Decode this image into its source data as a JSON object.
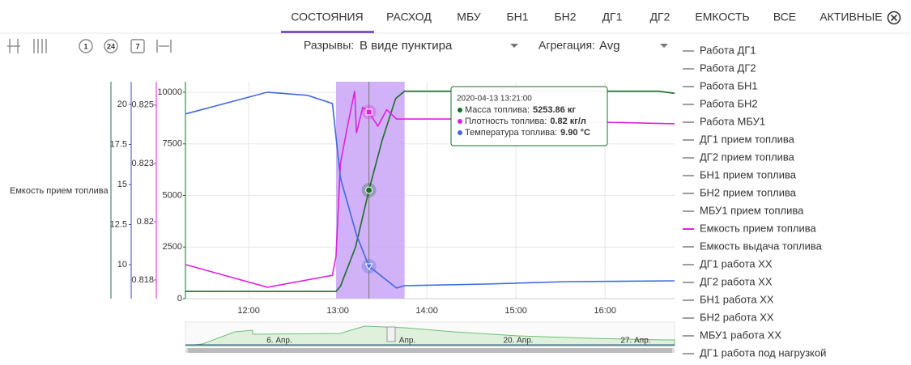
{
  "tabs": [
    "СОСТОЯНИЯ",
    "РАСХОД",
    "МБУ",
    "БН1",
    "БН2",
    "ДГ1",
    "ДГ2",
    "ЕМКОСТЬ",
    "ВСЕ",
    "АКТИВНЫЕ"
  ],
  "selected_tab": 0,
  "toolbar": {
    "icon_labels": [
      "1",
      "24",
      "7"
    ]
  },
  "controls": {
    "gaps_label": "Разрывы:",
    "gaps_value": "В виде пунктира",
    "aggregation_label": "Агрегация:",
    "aggregation_value": "Avg"
  },
  "legend_items": [
    {
      "label": "Работа ДГ1",
      "color": "#9e9e9e"
    },
    {
      "label": "Работа ДГ2",
      "color": "#9e9e9e"
    },
    {
      "label": "Работа БН1",
      "color": "#9e9e9e"
    },
    {
      "label": "Работа БН2",
      "color": "#9e9e9e"
    },
    {
      "label": "Работа МБУ1",
      "color": "#9e9e9e"
    },
    {
      "label": "ДГ1 прием топлива",
      "color": "#9e9e9e"
    },
    {
      "label": "ДГ2 прием топлива",
      "color": "#9e9e9e"
    },
    {
      "label": "БН1 прием топлива",
      "color": "#9e9e9e"
    },
    {
      "label": "БН2 прием топлива",
      "color": "#9e9e9e"
    },
    {
      "label": "МБУ1 прием топлива",
      "color": "#9e9e9e"
    },
    {
      "label": "Емкость прием топлива",
      "color": "#e020e0"
    },
    {
      "label": "Емкость выдача топлива",
      "color": "#9e9e9e"
    },
    {
      "label": "ДГ1 работа ХХ",
      "color": "#9e9e9e"
    },
    {
      "label": "ДГ2 работа ХХ",
      "color": "#9e9e9e"
    },
    {
      "label": "БН1 работа ХХ",
      "color": "#9e9e9e"
    },
    {
      "label": "БН2 работа ХХ",
      "color": "#9e9e9e"
    },
    {
      "label": "МБУ1 работа ХХ",
      "color": "#9e9e9e"
    },
    {
      "label": "ДГ1 работа под нагрузкой",
      "color": "#9e9e9e"
    }
  ],
  "chart_data": {
    "type": "line",
    "axis_caption": "Емкость прием топлива",
    "grid": true,
    "xlim": [
      11.29,
      16.78
    ],
    "xticks": [
      {
        "value": 12,
        "label": "12:00"
      },
      {
        "value": 13,
        "label": "13:00"
      },
      {
        "value": 14,
        "label": "14:00"
      },
      {
        "value": 15,
        "label": "15:00"
      },
      {
        "value": 16,
        "label": "16:00"
      }
    ],
    "ylim": [
      0,
      10510
    ],
    "yticks": [
      0,
      2500,
      5000,
      7500,
      10000
    ],
    "y2lim": [
      0.8167,
      0.826
    ],
    "y2ticks": [
      {
        "value": 0.8175,
        "label": "0.818"
      },
      {
        "value": 0.82,
        "label": "0.82"
      },
      {
        "value": 0.8225,
        "label": "0.823"
      },
      {
        "value": 0.825,
        "label": "0.825"
      }
    ],
    "y3lim": [
      7.88,
      21.41
    ],
    "y3ticks": [
      10,
      12.5,
      15,
      17.5,
      20
    ],
    "highlight": [
      12.98,
      13.75
    ],
    "series": [
      {
        "name": "Масса топлива",
        "color": "#1b6e2a",
        "axis": "y",
        "x": [
          11.29,
          12.98,
          13.03,
          13.2,
          13.35,
          13.5,
          13.65,
          13.75,
          16.6,
          16.78
        ],
        "values": [
          350,
          350,
          600,
          2500,
          5254,
          7700,
          9700,
          10050,
          10050,
          9950
        ]
      },
      {
        "name": "Плотность топлива",
        "color": "#e020e0",
        "axis": "y2",
        "x": [
          11.29,
          12.21,
          12.94,
          12.98,
          13.03,
          13.12,
          13.19,
          13.21,
          13.28,
          13.35,
          13.45,
          13.55,
          13.66,
          14.3,
          15.57,
          16.78
        ],
        "values": [
          0.81816,
          0.81719,
          0.8177,
          0.8185,
          0.8225,
          0.8243,
          0.8256,
          0.8238,
          0.8249,
          0.8247,
          0.8241,
          0.8248,
          0.8244,
          0.8244,
          0.8243,
          0.8242
        ]
      },
      {
        "name": "Температура топлива",
        "color": "#4169e1",
        "axis": "y3",
        "x": [
          11.29,
          12.21,
          12.66,
          12.94,
          13.03,
          13.21,
          13.35,
          13.66,
          13.75,
          14.66,
          15.57,
          16.78
        ],
        "values": [
          19.4,
          20.76,
          20.56,
          20.05,
          15.4,
          11.87,
          9.9,
          8.54,
          8.69,
          8.79,
          8.94,
          8.99
        ]
      }
    ],
    "tooltip": {
      "title": "2020-04-13 13:21:00",
      "x": 13.35,
      "labels": [
        "Масса топлива:",
        "Плотность топлива:",
        "Температура топлива:"
      ],
      "values": [
        5253.86,
        0.8247,
        9.9
      ],
      "value_labels": [
        "5253.86 кг",
        "0.82 кг/л",
        "9.90 °C"
      ]
    },
    "navigator": {
      "labels": [
        "6. Апр.",
        "Апр.",
        "20. Апр.",
        "27. Апр."
      ]
    }
  }
}
